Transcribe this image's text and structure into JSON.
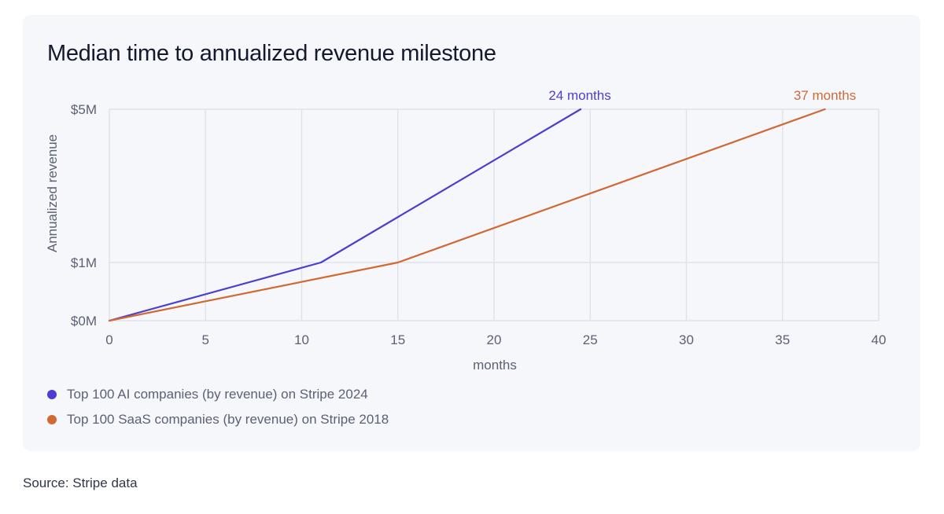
{
  "title": "Median time to annualized revenue milestone",
  "source": "Source: Stripe data",
  "colors": {
    "ai": "#4b3fcf",
    "saas": "#cf6a35",
    "grid": "#dfe3ec",
    "tick": "#5b6175",
    "card": "#f6f7fb"
  },
  "chart_data": {
    "type": "line",
    "title": "Median time to annualized revenue milestone",
    "xlabel": "months",
    "ylabel": "Annualized revenue",
    "xlim": [
      0,
      40
    ],
    "x_ticks": [
      0,
      5,
      10,
      15,
      20,
      25,
      30,
      35,
      40
    ],
    "y_ticks": [
      {
        "value": 0,
        "label": "$0M"
      },
      {
        "value": 1,
        "label": "$1M"
      },
      {
        "value": 5,
        "label": "$5M"
      }
    ],
    "grid": true,
    "legend_position": "bottom-left",
    "series": [
      {
        "name": "Top 100 AI companies (by revenue) on Stripe 2024",
        "color": "#4b3fcf",
        "points": [
          [
            0,
            0
          ],
          [
            11,
            1
          ],
          [
            24.5,
            5
          ]
        ],
        "annotation": "24 months"
      },
      {
        "name": "Top 100 SaaS companies (by revenue) on Stripe 2018",
        "color": "#cf6a35",
        "points": [
          [
            0,
            0
          ],
          [
            15,
            1
          ],
          [
            37.2,
            5
          ]
        ],
        "annotation": "37 months"
      }
    ]
  }
}
